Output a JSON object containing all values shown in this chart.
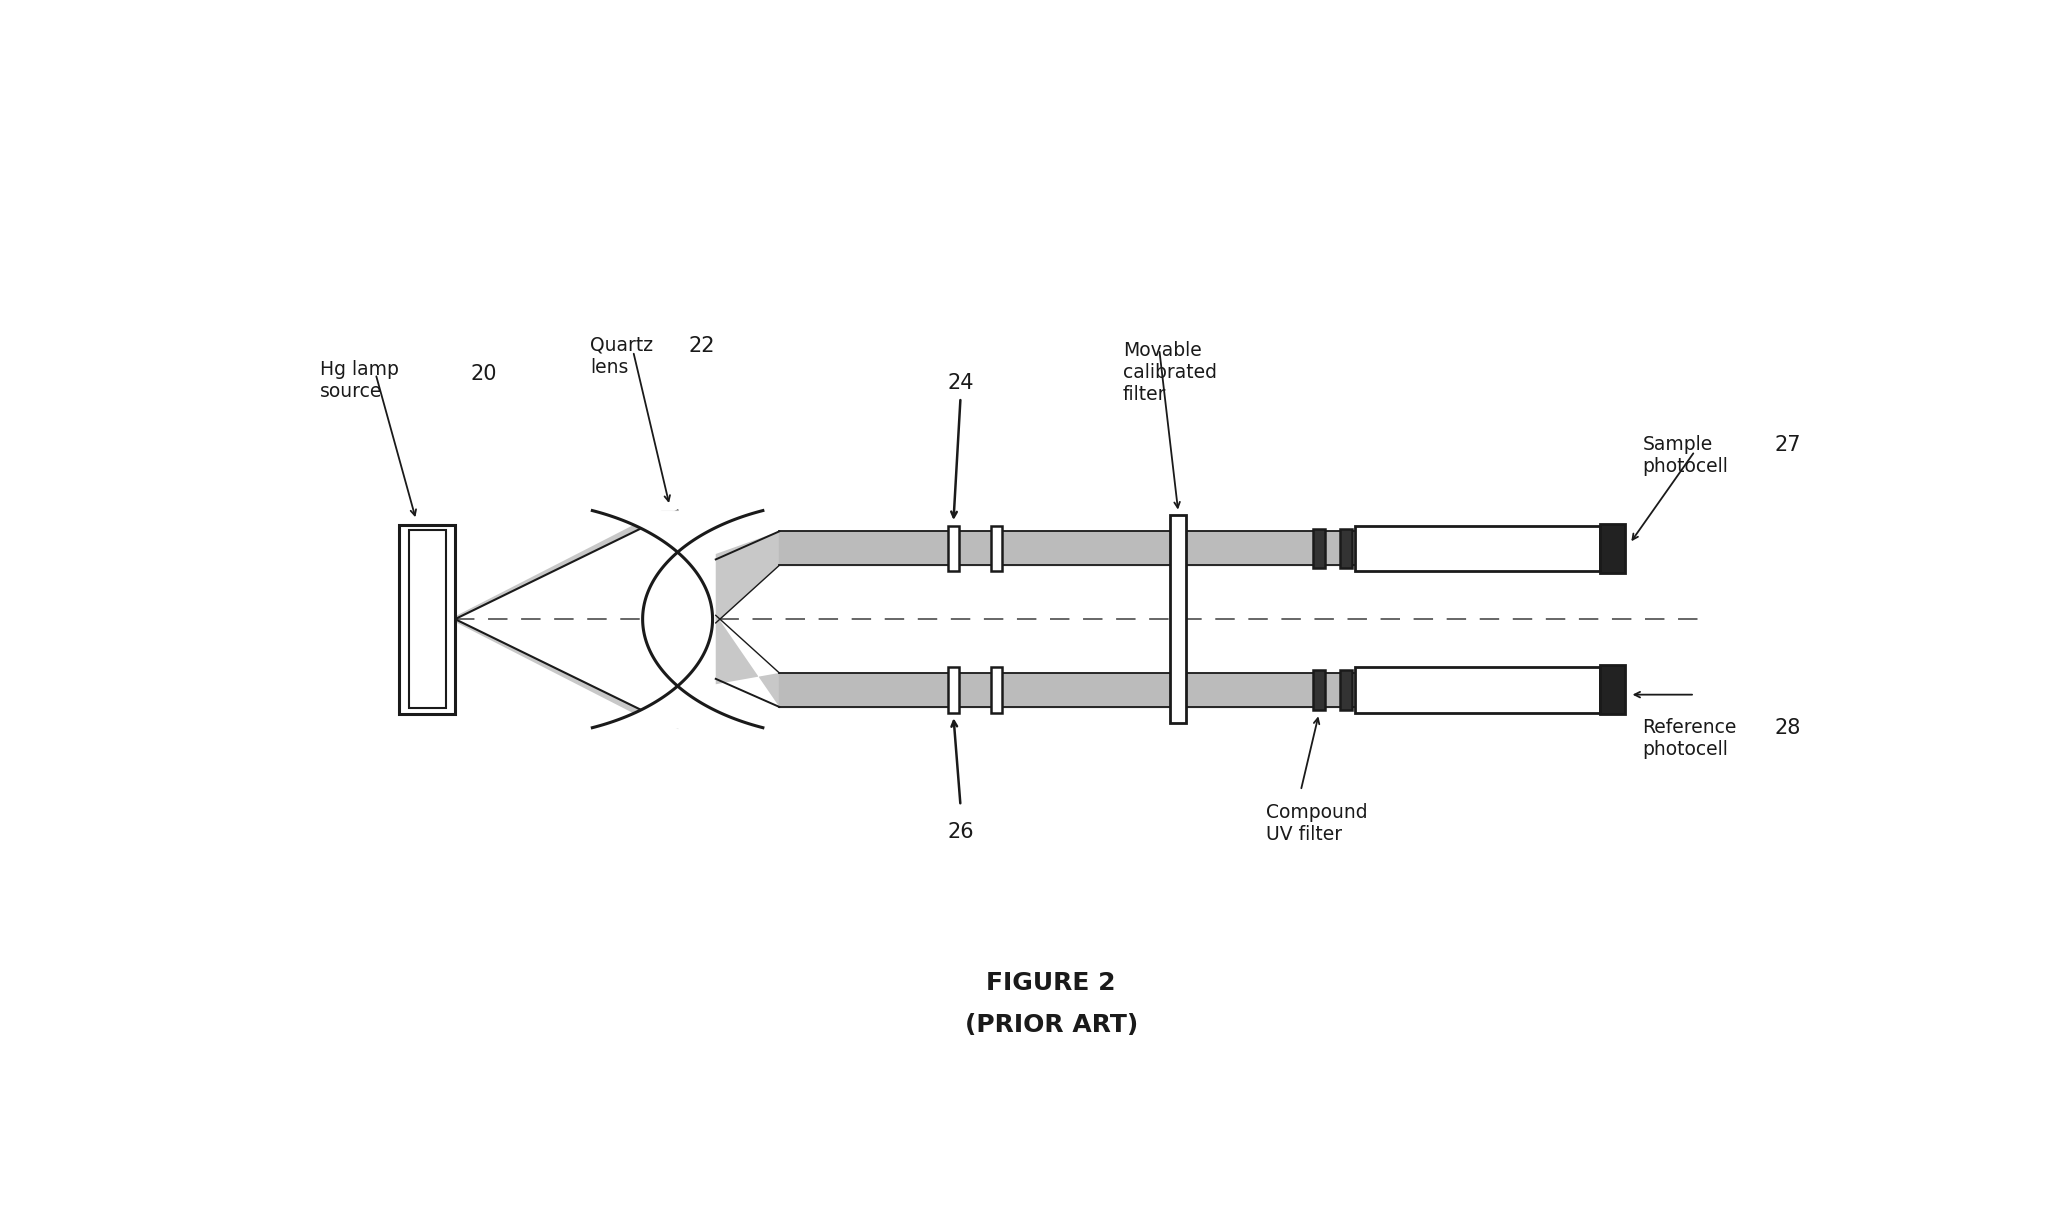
{
  "title": "FIGURE 2\n(PRIOR ART)",
  "background_color": "#ffffff",
  "fig_width": 20.51,
  "fig_height": 12.26,
  "color": "#1a1a1a",
  "labels": {
    "hg_lamp": "Hg lamp\nsource",
    "hg_num": "20",
    "quartz": "Quartz\nlens",
    "quartz_num": "22",
    "num24": "24",
    "num26": "26",
    "movable": "Movable\ncalibrated\nfilter",
    "sample": "Sample\nphotocell",
    "sample_num": "27",
    "reference": "Reference\nphotocell",
    "ref_num": "28",
    "compound": "Compound\nUV filter"
  }
}
